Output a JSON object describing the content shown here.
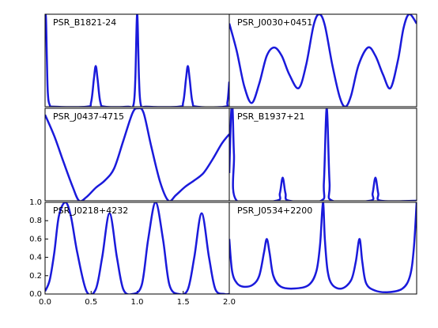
{
  "chart_data": [
    {
      "type": "line",
      "title": "PSR_B1821-24",
      "color": "#1a1adb",
      "xlim": [
        0,
        2
      ],
      "ylim": [
        0,
        1
      ],
      "x": [
        0,
        0.01,
        0.02,
        0.03,
        0.05,
        0.1,
        0.45,
        0.5,
        0.53,
        0.55,
        0.57,
        0.6,
        0.65,
        0.9,
        0.96,
        0.98,
        1.0,
        1.02,
        1.04,
        1.1,
        1.45,
        1.5,
        1.53,
        1.55,
        1.57,
        1.6,
        1.65,
        1.95,
        1.98,
        2.0
      ],
      "values": [
        1.0,
        0.95,
        0.5,
        0.15,
        0.02,
        0,
        0,
        0.05,
        0.3,
        0.44,
        0.3,
        0.05,
        0,
        0,
        0.02,
        0.3,
        1.0,
        0.3,
        0.02,
        0,
        0,
        0.05,
        0.3,
        0.44,
        0.3,
        0.05,
        0,
        0,
        0.05,
        0.27
      ]
    },
    {
      "type": "line",
      "title": "PSR_J0030+0451",
      "color": "#1a1adb",
      "xlim": [
        0,
        2
      ],
      "ylim": [
        0,
        1
      ],
      "x": [
        0,
        0.08,
        0.16,
        0.24,
        0.32,
        0.4,
        0.48,
        0.56,
        0.64,
        0.74,
        0.82,
        0.9,
        0.96,
        1.02,
        1.1,
        1.18,
        1.24,
        1.3,
        1.38,
        1.48,
        1.56,
        1.64,
        1.72,
        1.8,
        1.86,
        1.92,
        2.0
      ],
      "values": [
        0.9,
        0.6,
        0.22,
        0.04,
        0.25,
        0.55,
        0.64,
        0.55,
        0.35,
        0.2,
        0.45,
        0.88,
        1.0,
        0.88,
        0.45,
        0.1,
        0,
        0.12,
        0.45,
        0.64,
        0.55,
        0.35,
        0.2,
        0.5,
        0.85,
        1.0,
        0.9
      ]
    },
    {
      "type": "line",
      "title": "PSR_J0437-4715",
      "color": "#1a1adb",
      "xlim": [
        0,
        2
      ],
      "ylim": [
        0,
        1
      ],
      "x": [
        0,
        0.1,
        0.2,
        0.3,
        0.37,
        0.45,
        0.55,
        0.65,
        0.75,
        0.85,
        0.95,
        1.01,
        1.07,
        1.15,
        1.25,
        1.34,
        1.42,
        1.52,
        1.62,
        1.72,
        1.82,
        1.92,
        2.0
      ],
      "values": [
        0.93,
        0.7,
        0.42,
        0.15,
        0,
        0.04,
        0.14,
        0.22,
        0.35,
        0.65,
        0.95,
        1.0,
        0.95,
        0.6,
        0.2,
        0,
        0.06,
        0.15,
        0.22,
        0.3,
        0.45,
        0.62,
        0.72
      ]
    },
    {
      "type": "line",
      "title": "PSR_B1937+21",
      "color": "#1a1adb",
      "xlim": [
        0,
        2
      ],
      "ylim": [
        0,
        1
      ],
      "x": [
        0,
        0.02,
        0.035,
        0.05,
        0.08,
        0.5,
        0.54,
        0.57,
        0.6,
        0.64,
        0.98,
        1.01,
        1.04,
        1.07,
        1.1,
        1.5,
        1.53,
        1.56,
        1.59,
        1.62,
        2.0
      ],
      "values": [
        0.3,
        0.95,
        1.0,
        0.5,
        0,
        0,
        0.08,
        0.25,
        0.08,
        0,
        0,
        0.2,
        1.0,
        0.2,
        0,
        0,
        0.08,
        0.25,
        0.08,
        0,
        0
      ]
    },
    {
      "type": "line",
      "title": "PSR_J0218+4232",
      "color": "#1a1adb",
      "xlim": [
        0,
        2
      ],
      "ylim": [
        0,
        1
      ],
      "xticks": [
        {
          "value": 0,
          "label": "0.0"
        },
        0.5,
        {
          "value": 1,
          "label": "1.0"
        },
        1.5,
        {
          "value": 2,
          "label": "2.0"
        }
      ],
      "yticks": [
        {
          "value": 0,
          "label": "0.0"
        },
        0.2,
        0.4,
        0.6,
        0.8,
        {
          "value": 1,
          "label": "1.0"
        }
      ],
      "x": [
        0,
        0.05,
        0.1,
        0.15,
        0.22,
        0.28,
        0.35,
        0.45,
        0.55,
        0.62,
        0.7,
        0.78,
        0.85,
        0.95,
        1.05,
        1.12,
        1.2,
        1.28,
        1.35,
        1.45,
        1.55,
        1.62,
        1.7,
        1.78,
        1.85,
        1.95,
        2.0
      ],
      "values": [
        0.03,
        0.15,
        0.45,
        0.85,
        1.0,
        0.85,
        0.45,
        0.03,
        0.05,
        0.4,
        0.88,
        0.4,
        0.05,
        0,
        0.1,
        0.6,
        1.0,
        0.6,
        0.1,
        0,
        0.05,
        0.4,
        0.88,
        0.4,
        0.05,
        0,
        0
      ]
    },
    {
      "type": "line",
      "title": "PSR_J0534+2200",
      "color": "#1a1adb",
      "xlim": [
        0,
        2
      ],
      "ylim": [
        0,
        1
      ],
      "x": [
        0,
        0.03,
        0.08,
        0.15,
        0.25,
        0.32,
        0.37,
        0.4,
        0.43,
        0.47,
        0.55,
        0.7,
        0.85,
        0.93,
        0.97,
        1.0,
        1.02,
        1.05,
        1.1,
        1.2,
        1.3,
        1.35,
        1.39,
        1.42,
        1.46,
        1.55,
        1.7,
        1.85,
        1.93,
        1.97,
        2.0
      ],
      "values": [
        0.6,
        0.25,
        0.12,
        0.08,
        0.1,
        0.2,
        0.45,
        0.6,
        0.45,
        0.2,
        0.08,
        0.06,
        0.1,
        0.25,
        0.55,
        1.0,
        0.6,
        0.25,
        0.1,
        0.06,
        0.15,
        0.35,
        0.6,
        0.35,
        0.12,
        0.04,
        0.02,
        0.06,
        0.2,
        0.5,
        1.0
      ]
    }
  ]
}
